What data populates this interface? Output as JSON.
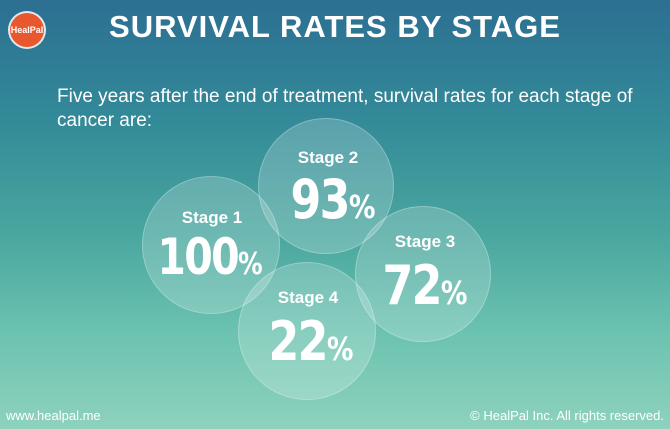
{
  "brand": {
    "logo_text": "HealPal"
  },
  "title": "SURVIVAL RATES BY STAGE",
  "intro": "Five years after the end of treatment, survival rates for each stage of cancer are:",
  "stages": [
    {
      "label": "Stage 1",
      "value": "100",
      "unit": "%"
    },
    {
      "label": "Stage 2",
      "value": "93",
      "unit": "%"
    },
    {
      "label": "Stage 3",
      "value": "72",
      "unit": "%"
    },
    {
      "label": "Stage 4",
      "value": "22",
      "unit": "%"
    }
  ],
  "footer": {
    "website": "www.healpal.me",
    "copyright": "© HealPal Inc. All rights reserved."
  }
}
